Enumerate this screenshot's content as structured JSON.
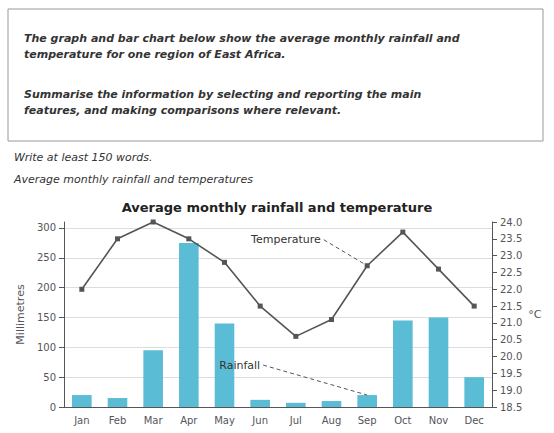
{
  "chart_data": {
    "type": "bar",
    "title": "Average monthly rainfall and temperature",
    "subtitle": "Average monthly rainfall and temperatures",
    "prompt": [
      "The graph and bar chart below show the average monthly rainfall and\ntemperature for one region of East Africa.",
      "Summarise the information by selecting and reporting the main\nfeatures, and making comparisons where relevant."
    ],
    "instruction": "Write at least 150 words.",
    "categories": [
      "Jan",
      "Feb",
      "Mar",
      "Apr",
      "May",
      "Jun",
      "Jul",
      "Aug",
      "Sep",
      "Oct",
      "Nov",
      "Dec"
    ],
    "series": [
      {
        "type": "bar",
        "color": "#5bbcd6",
        "values": [
          20,
          15,
          95,
          275,
          140,
          12,
          7,
          10,
          20,
          145,
          150,
          50
        ]
      },
      {
        "type": "line",
        "axis": "y2",
        "color": "#555555",
        "marker": "square",
        "line_style": "solid",
        "values": [
          22.0,
          23.5,
          24.0,
          23.5,
          22.8,
          21.5,
          20.6,
          21.1,
          22.7,
          23.7,
          22.6,
          21.5
        ]
      }
    ],
    "ylabel": "Millimetres",
    "y2label": "°C",
    "ylim": [
      0,
      310
    ],
    "yticks": [
      0,
      50,
      100,
      150,
      200,
      250,
      300
    ],
    "y2lim": [
      18.5,
      24.0
    ],
    "y2ticks": [
      18.5,
      {
        "value": 19,
        "label": "19.0"
      },
      19.5,
      {
        "value": 20,
        "label": "20.0"
      },
      20.5,
      {
        "value": 21,
        "label": "21.0"
      },
      21.5,
      {
        "value": 22,
        "label": "22.0"
      },
      22.5,
      {
        "value": 23,
        "label": "23.0"
      },
      23.5,
      {
        "value": 24,
        "label": "24.0"
      }
    ],
    "grid": true,
    "annotations": [
      {
        "text": "Temperature",
        "x": "Sep",
        "axis": "y2"
      },
      {
        "text": "Rainfall",
        "x": "Sep"
      }
    ]
  }
}
